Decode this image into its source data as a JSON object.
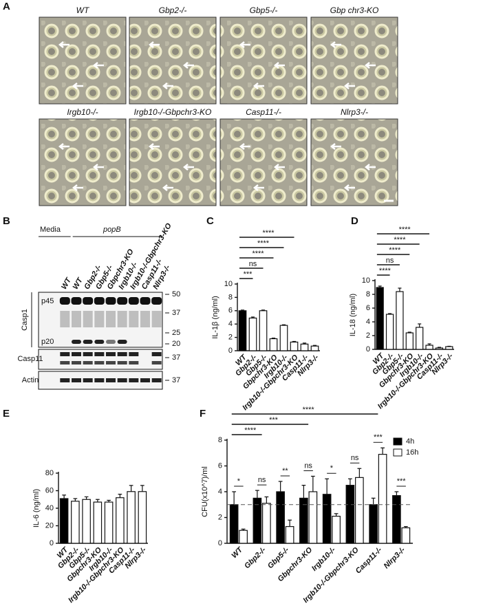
{
  "figure": {
    "panel_a": {
      "label": "A",
      "images": [
        "WT",
        "Gbp2-/-",
        "Gbp5-/-",
        "Gbp chr3-KO",
        "Irgb10-/-",
        "Irgb10-/-Gbpchr3-KO",
        "Casp11-/-",
        "Nlrp3-/-"
      ]
    },
    "panel_b": {
      "label": "B",
      "treatments": [
        "Media",
        "popB"
      ],
      "lanes": [
        "WT",
        "WT",
        "Gbp2-/-",
        "Gbp5-/-",
        "Gbpchr3-KO",
        "Irgb10-/-",
        "Irgb10-/-Gbpchr3-KO",
        "Casp11-/-",
        "Nlrp3-/-"
      ],
      "blots": [
        "Casp1",
        "Casp11",
        "Actin"
      ],
      "bands": [
        "p45",
        "p20"
      ],
      "casp1_markers": [
        50,
        37,
        25,
        20
      ],
      "casp11_markers": [
        37
      ],
      "actin_markers": [
        37
      ]
    }
  },
  "chart_data": [
    {
      "type": "bar",
      "panel_label": "C",
      "ylabel": "IL-1β (ng/ml)",
      "categories": [
        "WT",
        "Gbp2-/-",
        "Gbp5-/-",
        "Gbpchr3-KO",
        "Irgb10-/-",
        "Irgb10-/-Gbpchr3-KO",
        "Casp11-/-",
        "Nlrp3-/-"
      ],
      "values": [
        6.0,
        4.9,
        6.0,
        1.8,
        3.8,
        1.3,
        1.0,
        0.7
      ],
      "errors": [
        0.1,
        0.15,
        0.1,
        0.1,
        0.1,
        0.1,
        0.15,
        0.1
      ],
      "colors": [
        "#000000",
        "#ffffff",
        "#ffffff",
        "#ffffff",
        "#ffffff",
        "#ffffff",
        "#ffffff",
        "#ffffff"
      ],
      "ylim": [
        0,
        10
      ],
      "yticks": [
        0,
        2,
        4,
        6,
        8,
        10
      ],
      "brackets": [
        {
          "from": 0,
          "to": 1,
          "label": "***"
        },
        {
          "from": 0,
          "to": 2,
          "label": "ns"
        },
        {
          "from": 0,
          "to": 3,
          "label": "****"
        },
        {
          "from": 0,
          "to": 4,
          "label": "****"
        },
        {
          "from": 0,
          "to": 5,
          "label": "****"
        }
      ]
    },
    {
      "type": "bar",
      "panel_label": "D",
      "ylabel": "IL-18 (ng/ml)",
      "categories": [
        "WT",
        "Gbp2-/-",
        "Gbp5-/-",
        "Gbpchr3-KO",
        "Irgb10-/-",
        "Irgb10-/-Gbpchr3-KO",
        "Casp11-/-",
        "Nlrp3-/-"
      ],
      "values": [
        9.0,
        5.1,
        8.4,
        2.4,
        3.2,
        0.6,
        0.2,
        0.4
      ],
      "errors": [
        0.2,
        0.1,
        0.5,
        0.1,
        0.5,
        0.2,
        0.1,
        0.05
      ],
      "colors": [
        "#000000",
        "#ffffff",
        "#ffffff",
        "#ffffff",
        "#ffffff",
        "#ffffff",
        "#ffffff",
        "#ffffff"
      ],
      "ylim": [
        0,
        10
      ],
      "yticks": [
        0,
        2,
        4,
        6,
        8,
        10
      ],
      "brackets": [
        {
          "from": 0,
          "to": 1,
          "label": "****"
        },
        {
          "from": 0,
          "to": 2,
          "label": "ns"
        },
        {
          "from": 0,
          "to": 3,
          "label": "****"
        },
        {
          "from": 0,
          "to": 4,
          "label": "****"
        },
        {
          "from": 0,
          "to": 5,
          "label": "****"
        }
      ]
    },
    {
      "type": "bar",
      "panel_label": "E",
      "ylabel": "IL-6 (ng/ml)",
      "categories": [
        "WT",
        "Gbp2-/-",
        "Gbp5-/-",
        "Gbpchr3-KO",
        "Irgb10-/-",
        "Irgb10-/-Gbpchr3-KO",
        "Casp11-/-",
        "Nlrp3-/-"
      ],
      "values": [
        51,
        48,
        50,
        47,
        47,
        52,
        59,
        59
      ],
      "errors": [
        4,
        3,
        3,
        3,
        2,
        4,
        7,
        7
      ],
      "colors": [
        "#000000",
        "#ffffff",
        "#ffffff",
        "#ffffff",
        "#ffffff",
        "#ffffff",
        "#ffffff",
        "#ffffff"
      ],
      "ylim": [
        0,
        80
      ],
      "yticks": [
        0,
        20,
        40,
        60,
        80
      ],
      "brackets": []
    },
    {
      "type": "grouped_bar",
      "panel_label": "F",
      "ylabel": "CFU(x10^7)/ml",
      "categories": [
        "WT",
        "Gbp2-/-",
        "Gbp5-/-",
        "Gbpchr3-KO",
        "Irgb10-/-",
        "Irgb10-/-Gbpchr3-KO",
        "Casp11-/-",
        "Nlrp3-/-"
      ],
      "series": [
        {
          "name": "4h",
          "color": "#000000",
          "values": [
            3.0,
            3.5,
            4.0,
            3.5,
            3.8,
            4.5,
            3.0,
            3.7
          ],
          "errors": [
            1.0,
            0.6,
            0.8,
            1.0,
            1.2,
            0.5,
            0.5,
            0.3
          ]
        },
        {
          "name": "16h",
          "color": "#ffffff",
          "values": [
            1.0,
            3.1,
            1.3,
            4.0,
            2.1,
            5.1,
            6.9,
            1.2
          ],
          "errors": [
            0.1,
            0.5,
            0.5,
            1.2,
            0.2,
            0.7,
            0.5,
            0.1
          ]
        }
      ],
      "reference_line": 3,
      "ylim": [
        0,
        8
      ],
      "yticks": [
        0,
        2,
        4,
        6,
        8
      ],
      "group_brackets": [
        "*",
        "ns",
        "**",
        "ns",
        "*",
        "ns",
        "***",
        "***"
      ],
      "brackets": [
        {
          "from": 0,
          "to": 1,
          "label": "****"
        },
        {
          "from": 0,
          "to": 3,
          "label": "***"
        },
        {
          "from": 0,
          "to": 6,
          "label": "****"
        }
      ]
    }
  ]
}
